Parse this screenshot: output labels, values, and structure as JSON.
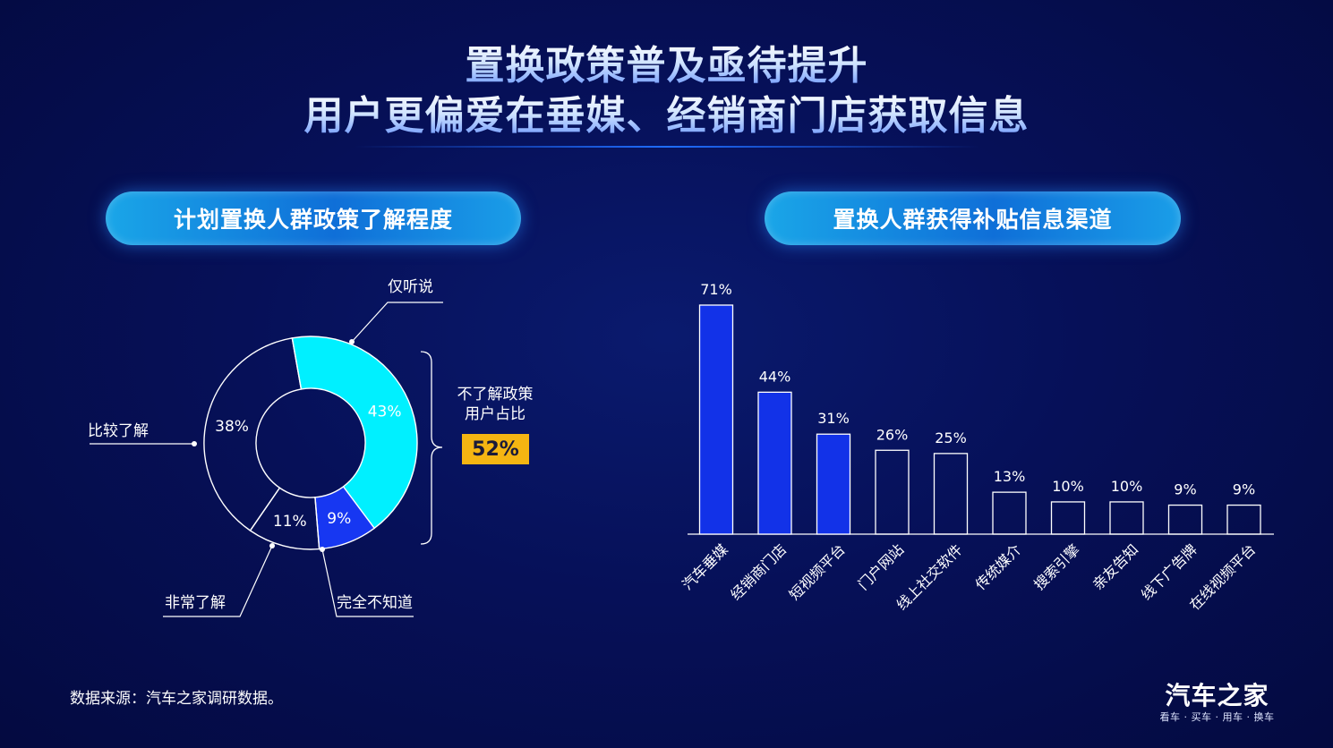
{
  "title": {
    "line1": "置换政策普及亟待提升",
    "line2": "用户更偏爱在垂媒、经销商门店获取信息"
  },
  "left_panel": {
    "title": "计划置换人群政策了解程度",
    "summary_line1": "不了解政策",
    "summary_line2": "用户占比",
    "summary_value": "52%"
  },
  "right_panel": {
    "title": "置换人群获得补贴信息渠道"
  },
  "source": "数据来源：汽车之家调研数据。",
  "logo": {
    "name": "汽车之家",
    "tagline": "看车 · 买车 · 用车 · 换车"
  },
  "colors": {
    "cyan": "#00f0ff",
    "blue": "#1737f2",
    "bar_blue": "#1232e8",
    "badge": "#f5b512"
  },
  "chart_data": [
    {
      "type": "pie",
      "variant": "donut",
      "slices": [
        {
          "label": "仅听说",
          "value": 43,
          "value_label": "43%",
          "fill": "#00f0ff"
        },
        {
          "label": "完全不知道",
          "value": 9,
          "value_label": "9%",
          "fill": "#1737f2"
        },
        {
          "label": "非常了解",
          "value": 11,
          "value_label": "11%",
          "fill": "none"
        },
        {
          "label": "比较了解",
          "value": 38,
          "value_label": "38%",
          "fill": "none"
        }
      ]
    },
    {
      "type": "bar",
      "categories": [
        "汽车垂媒",
        "经销商门店",
        "短视频平台",
        "门户网站",
        "线上社交软件",
        "传统媒介",
        "搜索引擎",
        "亲友告知",
        "线下广告牌",
        "在线视频平台"
      ],
      "values": [
        71,
        44,
        31,
        26,
        25,
        13,
        10,
        10,
        9,
        9
      ],
      "value_labels": [
        "71%",
        "44%",
        "31%",
        "26%",
        "25%",
        "13%",
        "10%",
        "10%",
        "9%",
        "9%"
      ],
      "highlighted": [
        true,
        true,
        true,
        false,
        false,
        false,
        false,
        false,
        false,
        false
      ],
      "grid": false,
      "ylim": [
        0,
        75
      ]
    }
  ]
}
